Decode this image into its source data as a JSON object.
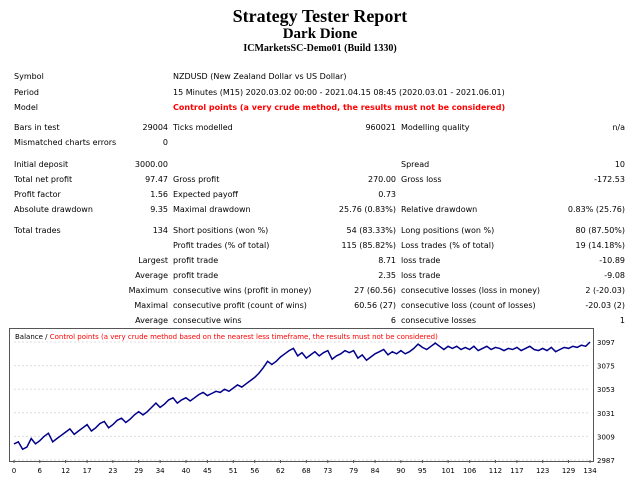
{
  "report": {
    "title": "Strategy Tester Report",
    "ea_name": "Dark Dione",
    "server": "ICMarketsSC-Demo01 (Build 1330)"
  },
  "rows": {
    "symbol_label": "Symbol",
    "symbol_value": "NZDUSD (New Zealand Dollar vs US Dollar)",
    "period_label": "Period",
    "period_value": "15 Minutes (M15) 2020.03.02 00:00 - 2021.04.15 08:45 (2020.03.01 - 2021.06.01)",
    "model_label": "Model",
    "model_value": "Control points (a very crude method, the results must not be considered)",
    "bars_label": "Bars in test",
    "bars_value": "29004",
    "ticks_label": "Ticks modelled",
    "ticks_value": "960021",
    "quality_label": "Modelling quality",
    "quality_value": "n/a",
    "mismatch_label": "Mismatched charts errors",
    "mismatch_value": "0",
    "deposit_label": "Initial deposit",
    "deposit_value": "3000.00",
    "spread_label": "Spread",
    "spread_value": "10",
    "netprofit_label": "Total net profit",
    "netprofit_value": "97.47",
    "grossprofit_label": "Gross profit",
    "grossprofit_value": "270.00",
    "grossloss_label": "Gross loss",
    "grossloss_value": "-172.53",
    "pf_label": "Profit factor",
    "pf_value": "1.56",
    "expected_label": "Expected payoff",
    "expected_value": "0.73",
    "absdd_label": "Absolute drawdown",
    "absdd_value": "9.35",
    "maxdd_label": "Maximal drawdown",
    "maxdd_value": "25.76 (0.83%)",
    "reldd_label": "Relative drawdown",
    "reldd_value": "0.83% (25.76)",
    "trades_label": "Total trades",
    "trades_value": "134",
    "short_label": "Short positions (won %)",
    "short_value": "54 (83.33%)",
    "long_label": "Long positions (won %)",
    "long_value": "80 (87.50%)",
    "profittrades_label": "Profit trades (% of total)",
    "profittrades_value": "115 (85.82%)",
    "losstrades_label": "Loss trades (% of total)",
    "losstrades_value": "19 (14.18%)",
    "largest_label": "Largest",
    "largest_profit_label": "profit trade",
    "largest_profit_value": "8.71",
    "largest_loss_label": "loss trade",
    "largest_loss_value": "-10.89",
    "average_label": "Average",
    "average_profit_label": "profit trade",
    "average_profit_value": "2.35",
    "average_loss_label": "loss trade",
    "average_loss_value": "-9.08",
    "maximum_label": "Maximum",
    "max_wins_label": "consecutive wins (profit in money)",
    "max_wins_value": "27 (60.56)",
    "max_losses_label": "consecutive losses (loss in money)",
    "max_losses_value": "2 (-20.03)",
    "maximal_label": "Maximal",
    "maximal_profit_label": "consecutive profit (count of wins)",
    "maximal_profit_value": "60.56 (27)",
    "maximal_loss_label": "consecutive loss (count of losses)",
    "maximal_loss_value": "-20.03 (2)",
    "average2_label": "Average",
    "avg_wins_label": "consecutive wins",
    "avg_wins_value": "6",
    "avg_losses_label": "consecutive losses",
    "avg_losses_value": "1"
  },
  "chart_data": {
    "type": "line",
    "legend_balance": "Balance",
    "legend_separator": " / ",
    "legend_note": "Control points (a very crude method based on the nearest less timeframe, the results must not be considered)",
    "line_color": "#00008b",
    "x_ticks": [
      "0",
      "6",
      "12",
      "17",
      "23",
      "29",
      "34",
      "40",
      "45",
      "51",
      "56",
      "62",
      "68",
      "73",
      "79",
      "84",
      "90",
      "95",
      "101",
      "106",
      "112",
      "117",
      "123",
      "129",
      "134"
    ],
    "y_ticks": [
      "3097",
      "3075",
      "3053",
      "3031",
      "3009",
      "2987"
    ],
    "xlim": [
      0,
      134
    ],
    "ylim": [
      2987,
      3097
    ],
    "x": [
      0,
      1,
      2,
      3,
      4,
      5,
      6,
      7,
      8,
      9,
      10,
      11,
      12,
      13,
      14,
      15,
      16,
      17,
      18,
      19,
      20,
      21,
      22,
      23,
      24,
      25,
      26,
      27,
      28,
      29,
      30,
      31,
      32,
      33,
      34,
      35,
      36,
      37,
      38,
      39,
      40,
      41,
      42,
      43,
      44,
      45,
      46,
      47,
      48,
      49,
      50,
      51,
      52,
      53,
      54,
      55,
      56,
      57,
      58,
      59,
      60,
      61,
      62,
      63,
      64,
      65,
      66,
      67,
      68,
      69,
      70,
      71,
      72,
      73,
      74,
      75,
      76,
      77,
      78,
      79,
      80,
      81,
      82,
      83,
      84,
      85,
      86,
      87,
      88,
      89,
      90,
      91,
      92,
      93,
      94,
      95,
      96,
      97,
      98,
      99,
      100,
      101,
      102,
      103,
      104,
      105,
      106,
      107,
      108,
      109,
      110,
      111,
      112,
      113,
      114,
      115,
      116,
      117,
      118,
      119,
      120,
      121,
      122,
      123,
      124,
      125,
      126,
      127,
      128,
      129,
      130,
      131,
      132,
      133,
      134
    ],
    "y": [
      3002,
      3004,
      2997,
      2999,
      3007,
      3002,
      3005,
      3009,
      3012,
      3004,
      3007,
      3010,
      3013,
      3016,
      3011,
      3014,
      3017,
      3020,
      3014,
      3017,
      3021,
      3023,
      3017,
      3020,
      3024,
      3026,
      3022,
      3025,
      3029,
      3032,
      3029,
      3032,
      3036,
      3040,
      3036,
      3039,
      3043,
      3045,
      3040,
      3043,
      3045,
      3042,
      3045,
      3048,
      3050,
      3047,
      3049,
      3051,
      3050,
      3053,
      3051,
      3054,
      3057,
      3055,
      3058,
      3061,
      3064,
      3068,
      3073,
      3079,
      3076,
      3079,
      3083,
      3086,
      3089,
      3091,
      3084,
      3087,
      3082,
      3085,
      3088,
      3084,
      3087,
      3089,
      3081,
      3084,
      3086,
      3089,
      3087,
      3089,
      3082,
      3085,
      3080,
      3083,
      3086,
      3088,
      3090,
      3085,
      3088,
      3086,
      3089,
      3086,
      3088,
      3091,
      3095,
      3092,
      3090,
      3093,
      3096,
      3093,
      3090,
      3093,
      3091,
      3093,
      3090,
      3092,
      3090,
      3093,
      3089,
      3091,
      3093,
      3090,
      3092,
      3091,
      3089,
      3091,
      3090,
      3092,
      3089,
      3091,
      3093,
      3090,
      3089,
      3091,
      3089,
      3092,
      3088,
      3090,
      3092,
      3091,
      3093,
      3092,
      3094,
      3093,
      3097
    ]
  }
}
